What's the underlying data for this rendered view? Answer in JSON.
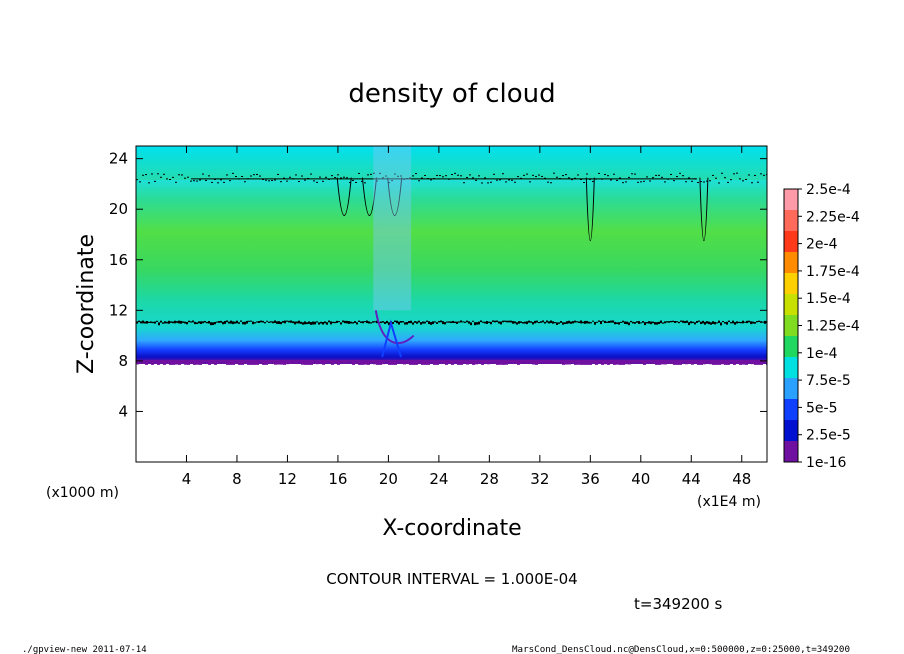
{
  "chart_data": {
    "type": "heatmap",
    "title": "density of cloud",
    "xlabel": "X-coordinate",
    "ylabel": "Z-coordinate",
    "x_unit_note": "(x1E4 m)",
    "y_unit_note": "(x1000 m)",
    "xlim": [
      0,
      50
    ],
    "ylim": [
      0,
      25
    ],
    "x_ticks": [
      4,
      8,
      12,
      16,
      20,
      24,
      28,
      32,
      36,
      40,
      44,
      48
    ],
    "y_ticks": [
      4,
      8,
      12,
      16,
      20,
      24
    ],
    "colorbar": {
      "labels": [
        "2.5e-4",
        "2.25e-4",
        "2e-4",
        "1.75e-4",
        "1.5e-4",
        "1.25e-4",
        "1e-4",
        "7.5e-5",
        "5e-5",
        "2.5e-5",
        "1e-16"
      ],
      "colors": [
        "#ff9aa8",
        "#ff6a5a",
        "#ff3a1a",
        "#ff8c00",
        "#ffd000",
        "#c8e000",
        "#7fdc20",
        "#20d860",
        "#00e0e0",
        "#2aa0ff",
        "#1040ff",
        "#0010d0",
        "#7010a0"
      ]
    },
    "cloud_layer": {
      "base_z": 8,
      "dense_band_z": [
        10,
        12
      ],
      "top_z": 22.5,
      "interior_value": "1e-4 to 1.25e-4"
    },
    "contour_100e4_peaks_x": [
      16.5,
      18.5,
      20.5,
      36,
      45
    ],
    "contour_interval": "CONTOUR INTERVAL = 1.000E-04",
    "time": "t=349200 s"
  },
  "footer": {
    "left": "./gpview-new   2011-07-14",
    "right": "MarsCond_DensCloud.nc@DensCloud,x=0:500000,z=0:25000,t=349200"
  }
}
